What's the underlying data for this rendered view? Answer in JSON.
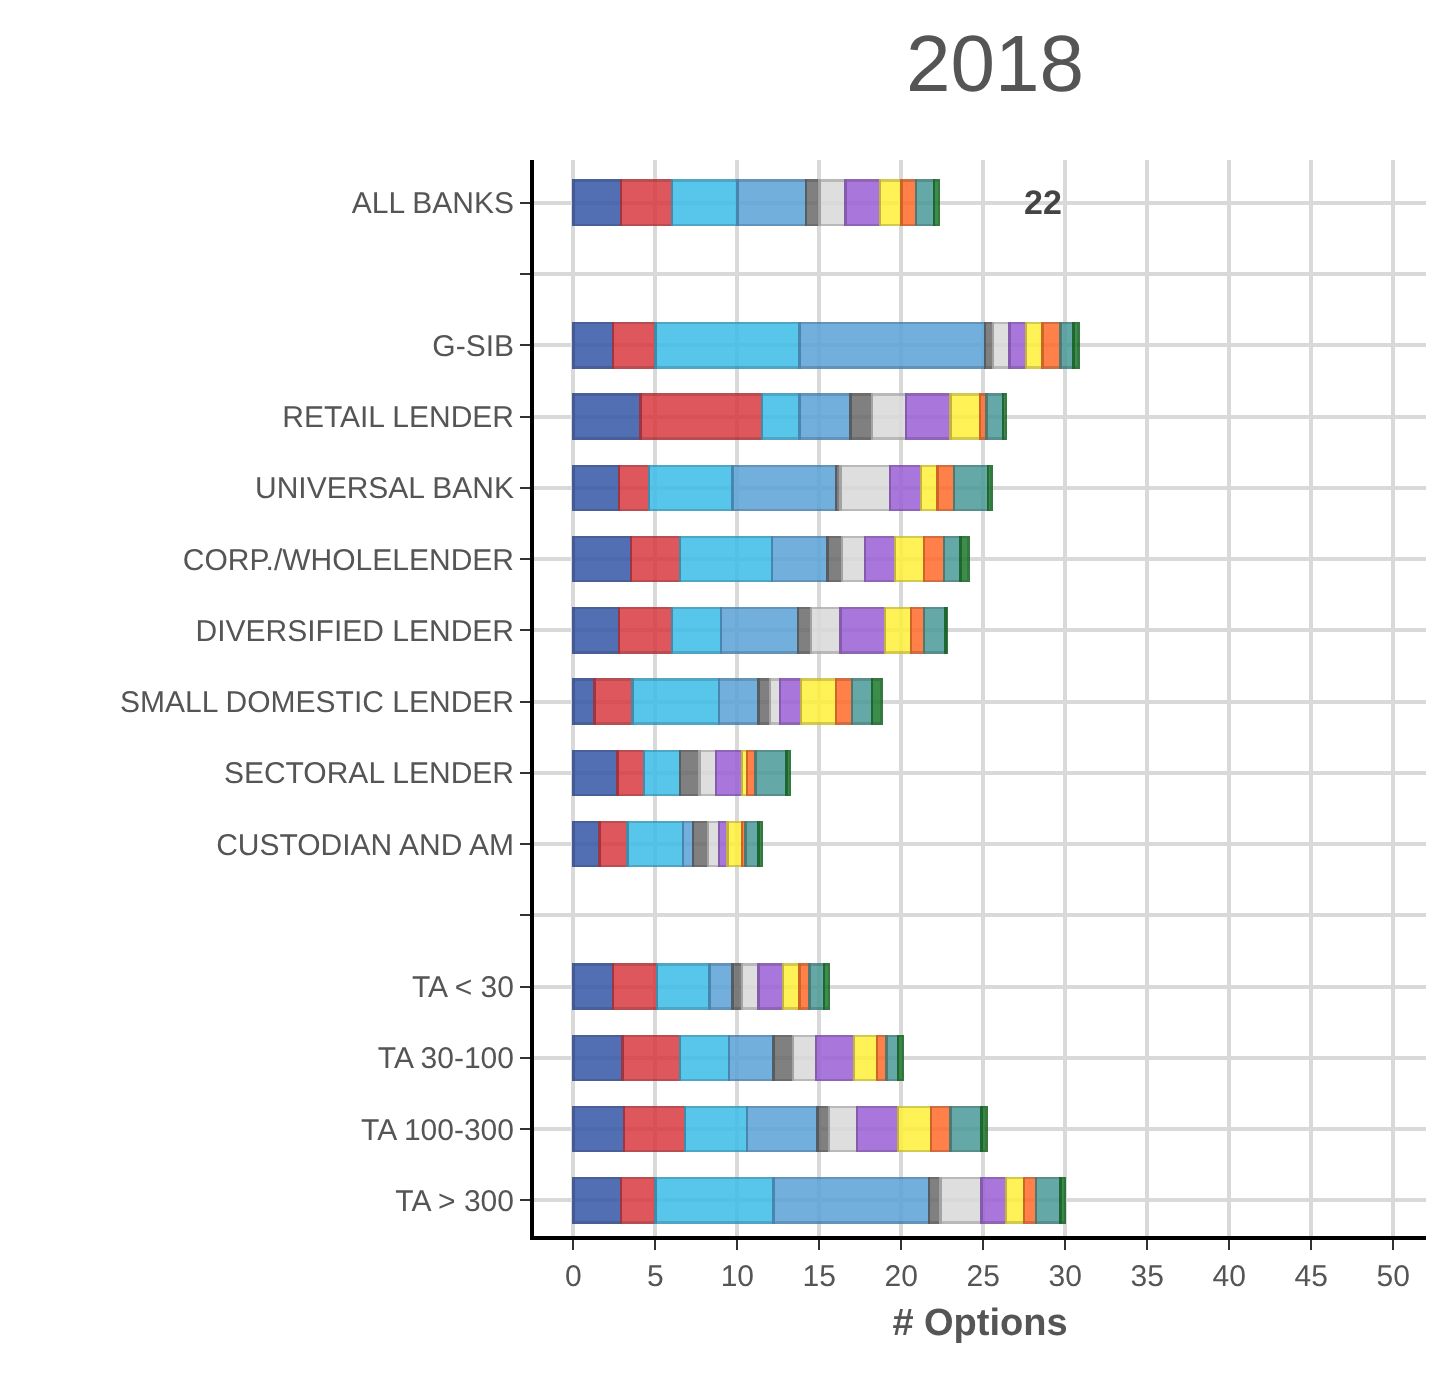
{
  "chart_data": {
    "type": "bar",
    "orientation": "horizontal",
    "stacked": true,
    "title": "2018",
    "xlabel": "# Options",
    "categories": [
      "ALL BANKS",
      null,
      "G-SIB",
      "RETAIL LENDER",
      "UNIVERSAL BANK",
      "CORP./WHOLELENDER",
      "DIVERSIFIED LENDER",
      "SMALL DOMESTIC LENDER",
      "SECTORAL LENDER",
      "CUSTODIAN AND AM",
      null,
      "TA < 30",
      "TA 30-100",
      "TA 100-300",
      "TA > 300"
    ],
    "series": [
      {
        "color": "#3457a8",
        "values": [
          2.9,
          null,
          2.4,
          4.1,
          2.8,
          3.5,
          2.8,
          1.3,
          2.7,
          1.6,
          null,
          2.4,
          3.0,
          3.1,
          2.9
        ]
      },
      {
        "color": "#d93a40",
        "values": [
          3.1,
          null,
          2.6,
          7.4,
          1.8,
          3.0,
          3.2,
          2.3,
          1.6,
          1.7,
          null,
          2.7,
          3.5,
          3.7,
          2.1
        ]
      },
      {
        "color": "#3bbde8",
        "values": [
          4.0,
          null,
          8.8,
          2.3,
          5.1,
          5.6,
          3.0,
          5.3,
          2.2,
          3.4,
          null,
          3.2,
          3.0,
          3.8,
          7.2
        ]
      },
      {
        "color": "#5aa2d8",
        "values": [
          4.2,
          null,
          11.3,
          3.1,
          6.3,
          3.4,
          4.7,
          2.4,
          null,
          0.6,
          null,
          1.4,
          2.7,
          4.3,
          9.5
        ]
      },
      {
        "color": "#6a6a6a",
        "values": [
          0.8,
          null,
          0.5,
          1.3,
          0.3,
          0.9,
          0.8,
          0.7,
          1.2,
          0.9,
          null,
          0.6,
          1.2,
          0.7,
          0.7
        ]
      },
      {
        "color": "#d9d9d9",
        "values": [
          1.6,
          null,
          1.0,
          2.1,
          3.0,
          1.4,
          1.8,
          0.6,
          1.0,
          0.7,
          null,
          1.0,
          1.4,
          1.7,
          2.5
        ]
      },
      {
        "color": "#9b5fd6",
        "values": [
          2.1,
          null,
          1.0,
          2.7,
          1.9,
          1.8,
          2.7,
          1.3,
          1.6,
          0.5,
          null,
          1.5,
          2.3,
          2.5,
          1.5
        ]
      },
      {
        "color": "#fff03a",
        "values": [
          1.3,
          null,
          1.0,
          1.8,
          1.0,
          1.8,
          1.6,
          2.1,
          0.3,
          0.9,
          null,
          1.0,
          1.4,
          2.0,
          1.1
        ]
      },
      {
        "color": "#ff6a2a",
        "values": [
          0.9,
          null,
          1.1,
          0.4,
          1.0,
          1.2,
          0.8,
          1.0,
          0.5,
          0.2,
          null,
          0.6,
          0.6,
          1.2,
          0.7
        ]
      },
      {
        "color": "#4a9a98",
        "values": [
          1.1,
          null,
          0.8,
          1.0,
          2.1,
          1.0,
          1.3,
          1.2,
          1.9,
          0.8,
          null,
          0.9,
          0.7,
          1.9,
          1.5
        ]
      },
      {
        "color": "#1a7a2a",
        "values": [
          0.3,
          null,
          0.3,
          0.2,
          0.2,
          0.5,
          0.1,
          0.6,
          0.2,
          0.2,
          null,
          0.3,
          0.3,
          0.3,
          0.3
        ]
      }
    ],
    "totals": [
      "22",
      null,
      null,
      null,
      null,
      null,
      null,
      null,
      null,
      null,
      null,
      null,
      null,
      null,
      null
    ],
    "xlim": [
      -2.4,
      52
    ],
    "xticks": [
      0,
      5,
      10,
      15,
      20,
      25,
      30,
      35,
      40,
      45,
      50
    ],
    "grid": true
  }
}
